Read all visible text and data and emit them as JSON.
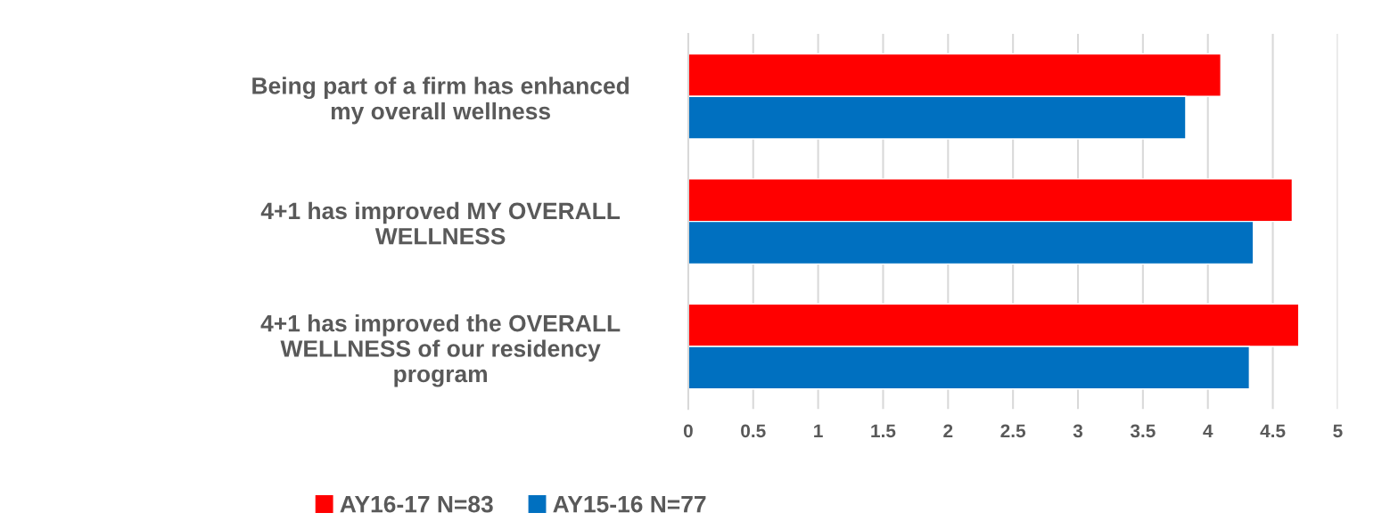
{
  "chart_data": {
    "type": "bar",
    "orientation": "horizontal",
    "categories": [
      "Being part of a firm has enhanced\nmy overall wellness",
      "4+1 has improved MY OVERALL\nWELLNESS",
      "4+1 has improved the OVERALL\nWELLNESS of our residency\nprogram"
    ],
    "series": [
      {
        "name": "AY16-17 N=83",
        "color": "#ff0000",
        "values": [
          4.1,
          4.65,
          4.7
        ]
      },
      {
        "name": "AY15-16 N=77",
        "color": "#0070c0",
        "values": [
          3.83,
          4.35,
          4.32
        ]
      }
    ],
    "xlim": [
      0,
      5
    ],
    "xticks": [
      0,
      0.5,
      1,
      1.5,
      2,
      2.5,
      3,
      3.5,
      4,
      4.5,
      5
    ],
    "grid": "x",
    "legend": "bottom"
  }
}
